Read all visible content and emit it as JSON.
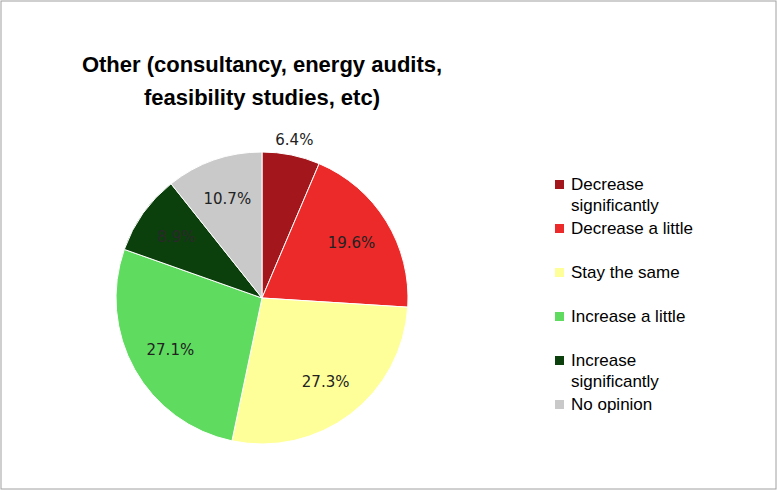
{
  "chart_data": {
    "type": "pie",
    "title": "Other (consultancy, energy audits, feasibility studies, etc)",
    "categories": [
      "Decrease significantly",
      "Decrease a little",
      "Stay the same",
      "Increase a little",
      "Increase significantly",
      "No opinion"
    ],
    "values": [
      6.4,
      19.6,
      27.3,
      27.1,
      8.9,
      10.7
    ],
    "value_labels": [
      "6.4%",
      "19.6%",
      "27.3%",
      "27.1%",
      "8.9%",
      "10.7%"
    ],
    "colors": [
      "#a3161b",
      "#ec2a2a",
      "#ffff99",
      "#5fdc5f",
      "#0b3f0b",
      "#c9c9c9"
    ],
    "data_labels": true,
    "legend": "right"
  }
}
